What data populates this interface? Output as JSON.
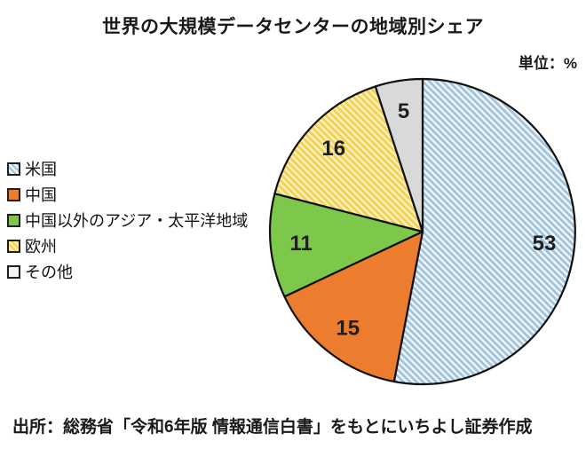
{
  "title": "世界の大規模データセンターの地域別シェア",
  "unit_label": "単位：%",
  "source": "出所：総務省「令和6年版 情報通信白書」をもとにいちよし証券作成",
  "chart_data": {
    "type": "pie",
    "title": "世界の大規模データセンターの地域別シェア",
    "unit": "%",
    "start_angle_deg": 0,
    "direction": "clockwise",
    "legend_position": "left",
    "labels": [
      "米国",
      "中国",
      "中国以外のアジア・太平洋地域",
      "欧州",
      "その他"
    ],
    "values": [
      53,
      15,
      11,
      16,
      5
    ],
    "slice_styles": [
      {
        "fill": "hatch",
        "stripe": "#a2c3dc",
        "bg": "#f1f6fa"
      },
      {
        "fill": "solid",
        "color": "#ec7d2e"
      },
      {
        "fill": "solid",
        "color": "#7dc84a"
      },
      {
        "fill": "hatch",
        "stripe": "#f3d153",
        "bg": "#fdf1c0"
      },
      {
        "fill": "solid",
        "color": "#d9d9d9",
        "legend_color": "#f3f3f3"
      }
    ],
    "outline_color": "#111111",
    "label_color": "#1f1f1f"
  }
}
